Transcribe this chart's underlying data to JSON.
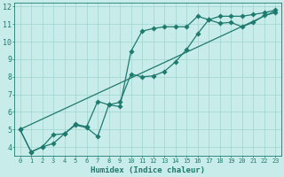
{
  "xlabel": "Humidex (Indice chaleur)",
  "bg_color": "#c8ecea",
  "grid_color": "#9fd4d0",
  "line_color": "#1e7a6e",
  "xlim": [
    -0.5,
    23.5
  ],
  "ylim": [
    3.5,
    12.2
  ],
  "yticks": [
    4,
    5,
    6,
    7,
    8,
    9,
    10,
    11,
    12
  ],
  "xticks": [
    0,
    1,
    2,
    3,
    4,
    5,
    6,
    7,
    8,
    9,
    10,
    11,
    12,
    13,
    14,
    15,
    16,
    17,
    18,
    19,
    20,
    21,
    22,
    23
  ],
  "line1_x": [
    0,
    1,
    2,
    3,
    4,
    5,
    6,
    7,
    8,
    9,
    10,
    11,
    12,
    13,
    14,
    15,
    16,
    17,
    18,
    19,
    20,
    21,
    22,
    23
  ],
  "line1_y": [
    5.0,
    3.72,
    4.0,
    4.7,
    4.75,
    5.25,
    5.1,
    4.6,
    6.4,
    6.3,
    9.45,
    10.6,
    10.75,
    10.85,
    10.85,
    10.85,
    11.45,
    11.25,
    11.05,
    11.1,
    10.85,
    11.1,
    11.5,
    11.65
  ],
  "line2_x": [
    0,
    1,
    2,
    3,
    4,
    5,
    6,
    7,
    8,
    9,
    10,
    11,
    12,
    13,
    14,
    15,
    16,
    17,
    18,
    19,
    20,
    21,
    22,
    23
  ],
  "line2_y": [
    5.0,
    3.72,
    4.0,
    4.2,
    4.75,
    5.3,
    5.15,
    6.6,
    6.4,
    6.55,
    8.15,
    8.0,
    8.05,
    8.3,
    8.85,
    9.55,
    10.45,
    11.25,
    11.45,
    11.45,
    11.45,
    11.55,
    11.65,
    11.8
  ],
  "line3_x": [
    0,
    23
  ],
  "line3_y": [
    5.0,
    11.75
  ]
}
